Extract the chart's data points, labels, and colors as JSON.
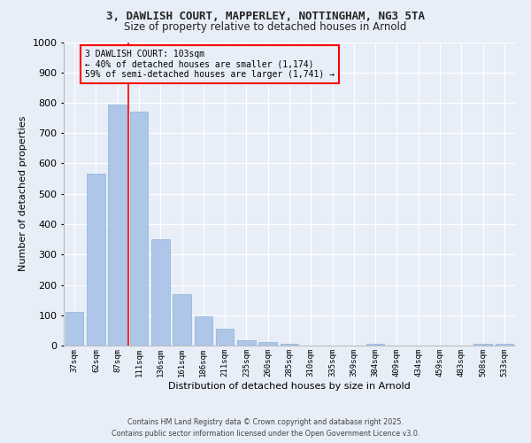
{
  "title_line1": "3, DAWLISH COURT, MAPPERLEY, NOTTINGHAM, NG3 5TA",
  "title_line2": "Size of property relative to detached houses in Arnold",
  "xlabel": "Distribution of detached houses by size in Arnold",
  "ylabel": "Number of detached properties",
  "categories": [
    "37sqm",
    "62sqm",
    "87sqm",
    "111sqm",
    "136sqm",
    "161sqm",
    "186sqm",
    "211sqm",
    "235sqm",
    "260sqm",
    "285sqm",
    "310sqm",
    "335sqm",
    "359sqm",
    "384sqm",
    "409sqm",
    "434sqm",
    "459sqm",
    "483sqm",
    "508sqm",
    "533sqm"
  ],
  "values": [
    110,
    565,
    795,
    770,
    350,
    170,
    97,
    55,
    17,
    12,
    7,
    0,
    0,
    0,
    7,
    0,
    0,
    0,
    0,
    7,
    7
  ],
  "bar_color": "#aec6e8",
  "bar_edge_color": "#8ab4d8",
  "bg_color": "#e8eef8",
  "grid_color": "#ffffff",
  "vline_x_idx": 2.5,
  "vline_color": "red",
  "annotation_title": "3 DAWLISH COURT: 103sqm",
  "annotation_line2": "← 40% of detached houses are smaller (1,174)",
  "annotation_line3": "59% of semi-detached houses are larger (1,741) →",
  "annotation_box_color": "red",
  "ylim": [
    0,
    1000
  ],
  "yticks": [
    0,
    100,
    200,
    300,
    400,
    500,
    600,
    700,
    800,
    900,
    1000
  ],
  "footer_line1": "Contains HM Land Registry data © Crown copyright and database right 2025.",
  "footer_line2": "Contains public sector information licensed under the Open Government Licence v3.0."
}
